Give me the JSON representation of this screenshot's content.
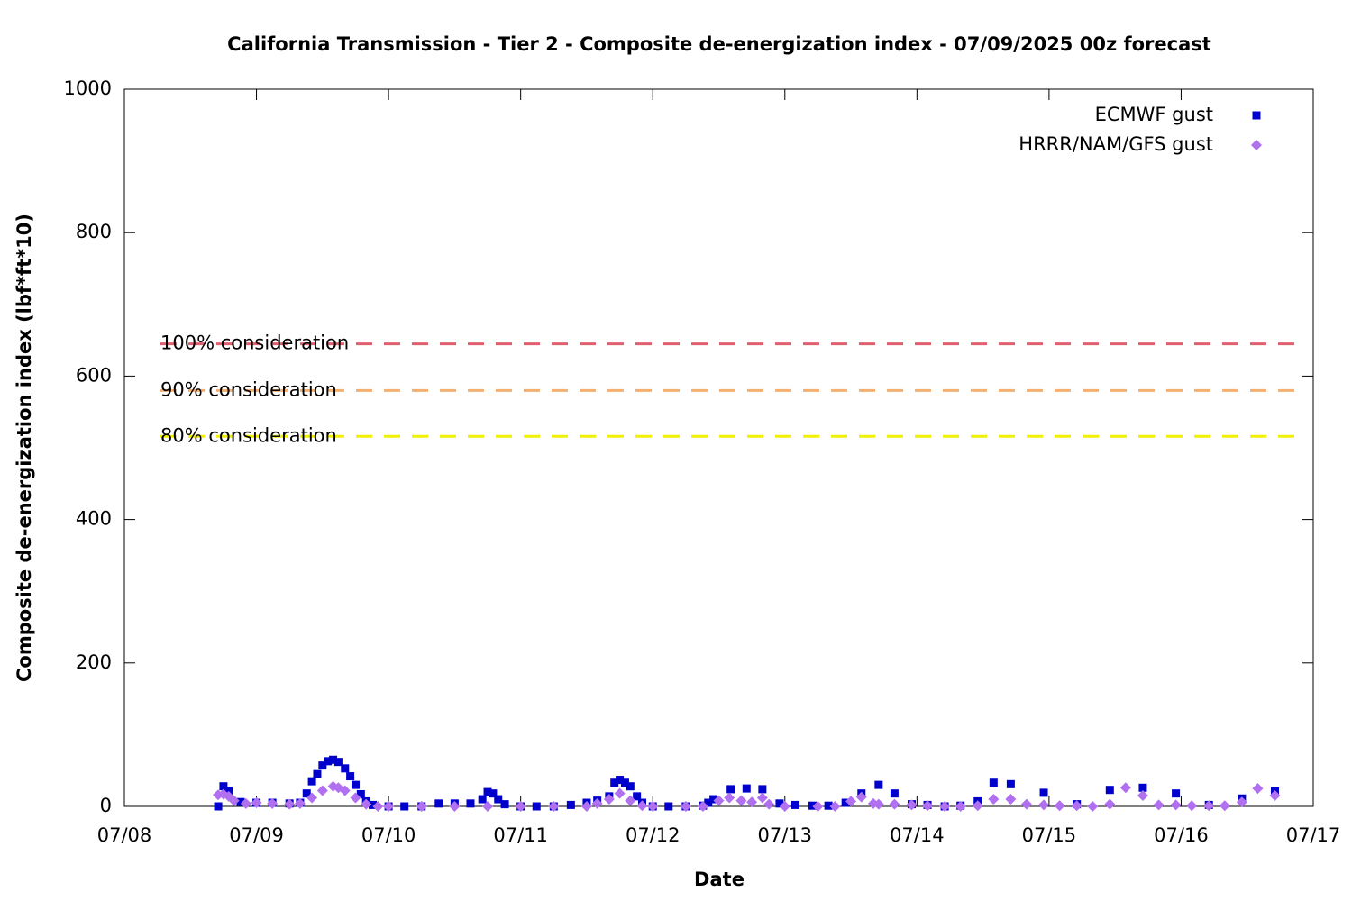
{
  "chart_data": {
    "type": "scatter",
    "title": "California Transmission - Tier 2 - Composite de-energization index - 07/09/2025 00z forecast",
    "x_label": "Date",
    "y_label": "Composite de-energization index (lbf*ft*10)",
    "xlim": [
      8,
      17
    ],
    "xticks": [
      {
        "value": 8,
        "label": "07/08"
      },
      {
        "value": 9,
        "label": "07/09"
      },
      {
        "value": 10,
        "label": "07/10"
      },
      {
        "value": 11,
        "label": "07/11"
      },
      {
        "value": 12,
        "label": "07/12"
      },
      {
        "value": 13,
        "label": "07/13"
      },
      {
        "value": 14,
        "label": "07/14"
      },
      {
        "value": 15,
        "label": "07/15"
      },
      {
        "value": 16,
        "label": "07/16"
      },
      {
        "value": 17,
        "label": "07/17"
      }
    ],
    "ylim": [
      0,
      1000
    ],
    "yticks": [
      0,
      200,
      400,
      600,
      800,
      1000
    ],
    "legend": "top-right",
    "reference_lines": [
      {
        "label": "100% consideration",
        "value": 645,
        "color": "#e06070"
      },
      {
        "label": "90% consideration",
        "value": 580,
        "color": "#f4b070"
      },
      {
        "label": "80% consideration",
        "value": 516,
        "color": "#f0f000"
      }
    ],
    "series": [
      {
        "name": "ECMWF gust",
        "color": "#0000cc",
        "marker": "square",
        "x": [
          8.71,
          8.75,
          8.79,
          8.88,
          9.0,
          9.12,
          9.25,
          9.33,
          9.38,
          9.42,
          9.46,
          9.5,
          9.54,
          9.58,
          9.62,
          9.67,
          9.71,
          9.75,
          9.79,
          9.83,
          9.88,
          10.0,
          10.12,
          10.25,
          10.38,
          10.5,
          10.62,
          10.71,
          10.75,
          10.79,
          10.83,
          10.88,
          11.0,
          11.12,
          11.25,
          11.38,
          11.5,
          11.58,
          11.67,
          11.71,
          11.75,
          11.79,
          11.83,
          11.88,
          11.92,
          12.0,
          12.12,
          12.25,
          12.38,
          12.42,
          12.46,
          12.59,
          12.71,
          12.83,
          12.96,
          13.08,
          13.21,
          13.33,
          13.46,
          13.58,
          13.71,
          13.83,
          13.96,
          14.08,
          14.21,
          14.33,
          14.46,
          14.58,
          14.71,
          14.96,
          15.21,
          15.46,
          15.71,
          15.96,
          16.21,
          16.46,
          16.71
        ],
        "values": [
          0,
          28,
          22,
          6,
          5,
          5,
          4,
          5,
          18,
          35,
          45,
          57,
          63,
          65,
          62,
          53,
          42,
          30,
          17,
          7,
          2,
          0,
          0,
          0,
          4,
          4,
          4,
          10,
          20,
          18,
          10,
          3,
          0,
          0,
          0,
          2,
          5,
          8,
          14,
          33,
          37,
          33,
          28,
          14,
          5,
          0,
          0,
          0,
          1,
          5,
          10,
          24,
          25,
          24,
          4,
          2,
          1,
          1,
          5,
          18,
          30,
          18,
          3,
          2,
          0,
          1,
          7,
          33,
          31,
          19,
          3,
          23,
          26,
          18,
          2,
          11,
          21
        ]
      },
      {
        "name": "HRRR/NAM/GFS gust",
        "color": "#b070f0",
        "marker": "diamond",
        "x": [
          8.71,
          8.75,
          8.79,
          8.83,
          8.92,
          9.0,
          9.12,
          9.25,
          9.33,
          9.42,
          9.5,
          9.58,
          9.62,
          9.67,
          9.75,
          9.83,
          9.92,
          10.0,
          10.25,
          10.5,
          10.75,
          11.0,
          11.25,
          11.5,
          11.58,
          11.67,
          11.75,
          11.83,
          11.92,
          12.0,
          12.25,
          12.38,
          12.5,
          12.58,
          12.67,
          12.75,
          12.83,
          12.88,
          13.0,
          13.25,
          13.38,
          13.5,
          13.58,
          13.67,
          13.71,
          13.83,
          13.96,
          14.08,
          14.21,
          14.33,
          14.46,
          14.58,
          14.71,
          14.83,
          14.96,
          15.08,
          15.21,
          15.33,
          15.46,
          15.58,
          15.71,
          15.83,
          15.96,
          16.08,
          16.21,
          16.33,
          16.46,
          16.58,
          16.71
        ],
        "values": [
          16,
          17,
          14,
          8,
          4,
          5,
          4,
          3,
          4,
          12,
          22,
          28,
          26,
          22,
          12,
          3,
          0,
          0,
          0,
          0,
          0,
          0,
          0,
          0,
          4,
          10,
          18,
          8,
          1,
          0,
          0,
          0,
          8,
          12,
          8,
          6,
          12,
          3,
          0,
          0,
          0,
          7,
          13,
          4,
          3,
          3,
          2,
          1,
          0,
          0,
          1,
          10,
          10,
          3,
          2,
          1,
          1,
          0,
          3,
          26,
          15,
          2,
          2,
          1,
          1,
          1,
          6,
          25,
          15
        ]
      }
    ]
  }
}
